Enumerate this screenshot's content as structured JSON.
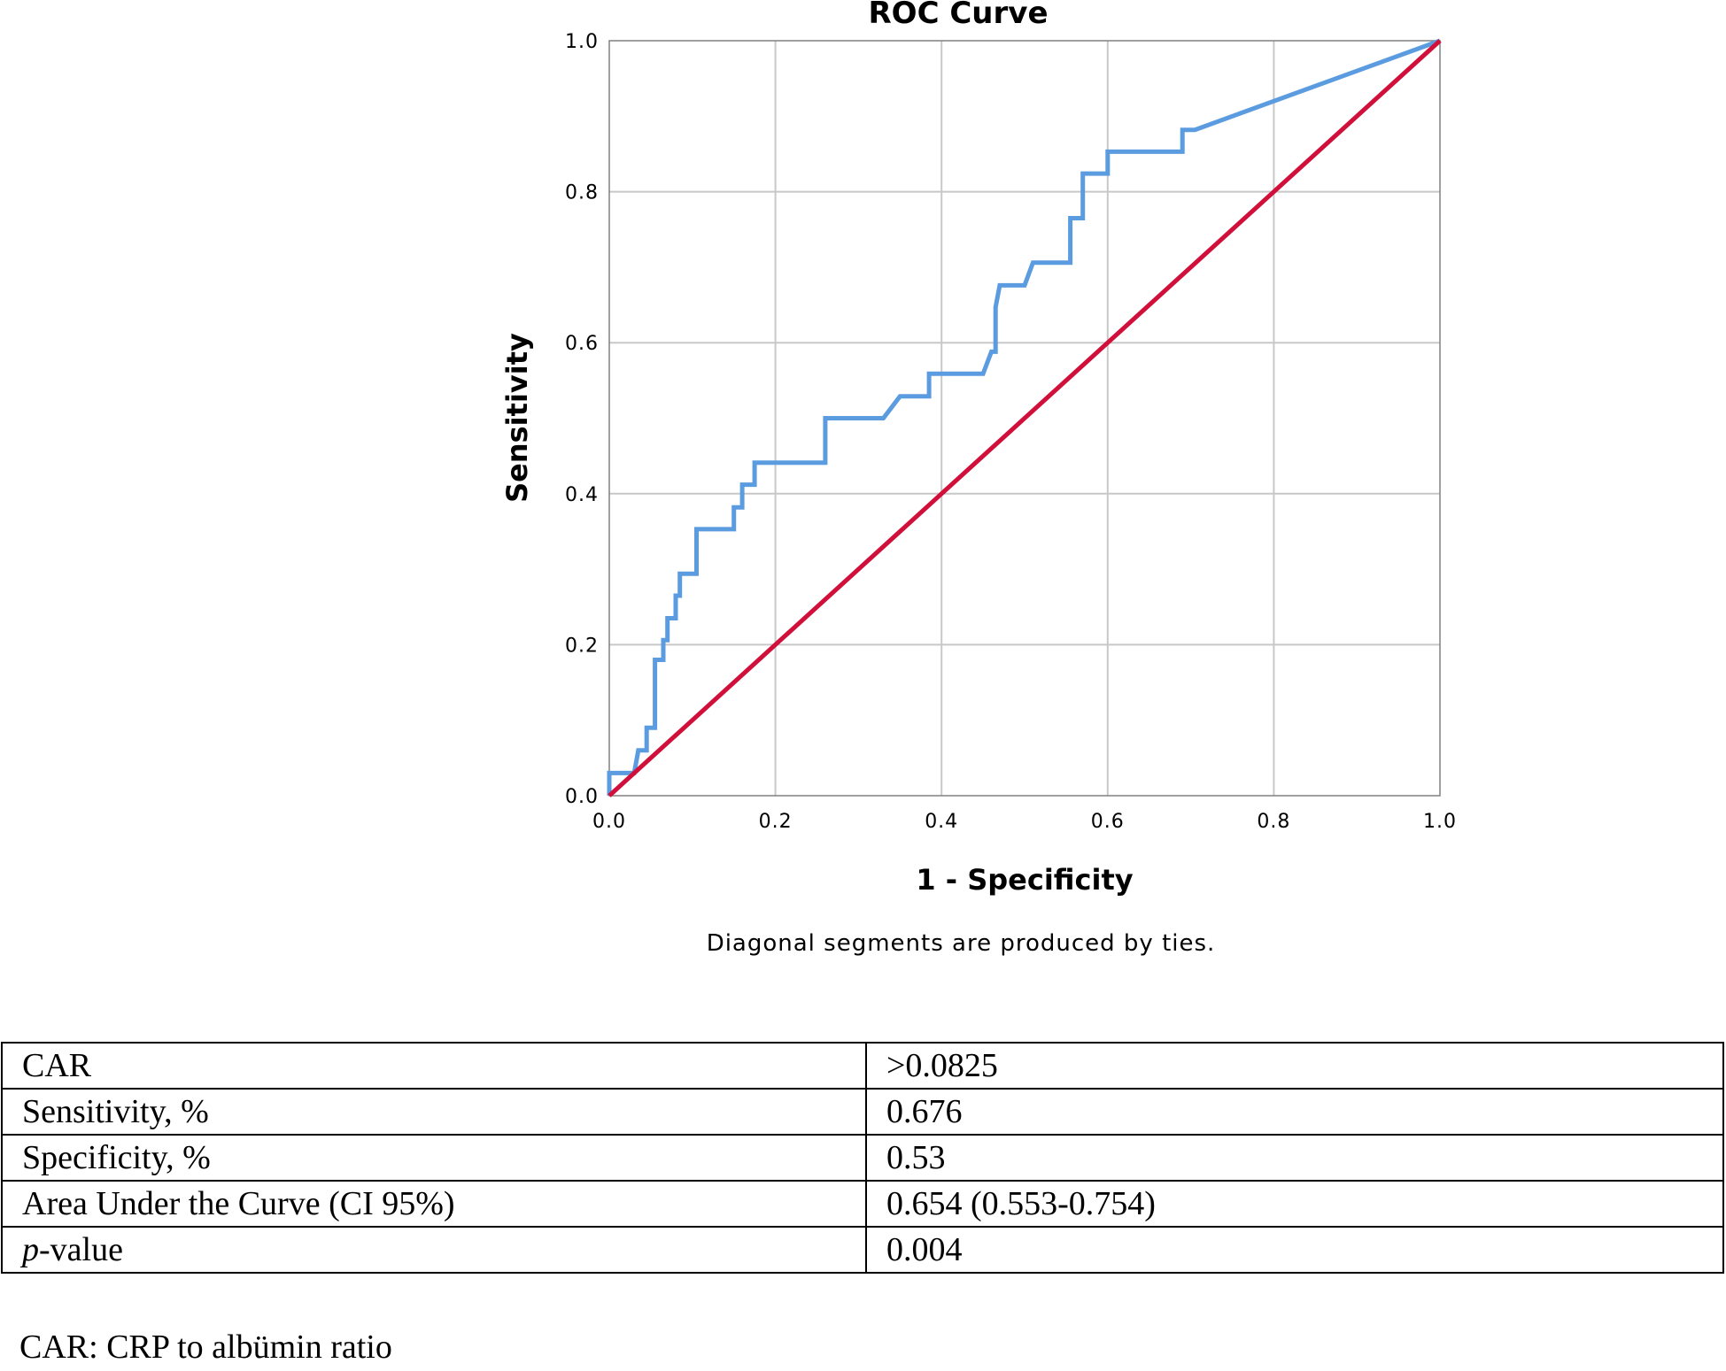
{
  "chart_data": {
    "type": "line",
    "title": "ROC Curve",
    "xlabel": "1 - Specificity",
    "ylabel": "Sensitivity",
    "xlim": [
      0,
      1
    ],
    "ylim": [
      0,
      1
    ],
    "x_ticks": [
      "0.0",
      "0.2",
      "0.4",
      "0.6",
      "0.8",
      "1.0"
    ],
    "y_ticks": [
      "0.0",
      "0.2",
      "0.4",
      "0.6",
      "0.8",
      "1.0"
    ],
    "grid": true,
    "footnote": "Diagonal segments are produced by ties.",
    "colors": {
      "roc": "#5b9be0",
      "reference": "#d0103a",
      "grid": "#c8c8c8"
    },
    "series": [
      {
        "values": [
          [
            0.0,
            0.0
          ],
          [
            0.0,
            0.03
          ],
          [
            0.03,
            0.03
          ],
          [
            0.035,
            0.06
          ],
          [
            0.045,
            0.06
          ],
          [
            0.045,
            0.09
          ],
          [
            0.055,
            0.09
          ],
          [
            0.055,
            0.18
          ],
          [
            0.065,
            0.18
          ],
          [
            0.065,
            0.206
          ],
          [
            0.07,
            0.206
          ],
          [
            0.07,
            0.235
          ],
          [
            0.08,
            0.235
          ],
          [
            0.08,
            0.265
          ],
          [
            0.085,
            0.265
          ],
          [
            0.085,
            0.294
          ],
          [
            0.105,
            0.294
          ],
          [
            0.105,
            0.353
          ],
          [
            0.15,
            0.353
          ],
          [
            0.15,
            0.382
          ],
          [
            0.16,
            0.382
          ],
          [
            0.16,
            0.412
          ],
          [
            0.175,
            0.412
          ],
          [
            0.175,
            0.441
          ],
          [
            0.26,
            0.441
          ],
          [
            0.26,
            0.5
          ],
          [
            0.33,
            0.5
          ],
          [
            0.35,
            0.529
          ],
          [
            0.385,
            0.529
          ],
          [
            0.385,
            0.559
          ],
          [
            0.45,
            0.559
          ],
          [
            0.46,
            0.588
          ],
          [
            0.465,
            0.588
          ],
          [
            0.465,
            0.647
          ],
          [
            0.47,
            0.676
          ],
          [
            0.5,
            0.676
          ],
          [
            0.51,
            0.706
          ],
          [
            0.555,
            0.706
          ],
          [
            0.555,
            0.765
          ],
          [
            0.57,
            0.765
          ],
          [
            0.57,
            0.824
          ],
          [
            0.6,
            0.824
          ],
          [
            0.6,
            0.853
          ],
          [
            0.69,
            0.853
          ],
          [
            0.69,
            0.882
          ],
          [
            0.705,
            0.882
          ],
          [
            1.0,
            1.0
          ]
        ]
      },
      {
        "values": [
          [
            0.0,
            0.0
          ],
          [
            1.0,
            1.0
          ]
        ]
      }
    ]
  },
  "table": {
    "rows": [
      {
        "label": "CAR",
        "value": ">0.0825"
      },
      {
        "label": "Sensitivity, %",
        "value": "0.676"
      },
      {
        "label": "Specificity, %",
        "value": "0.53"
      },
      {
        "label": "Area Under the Curve (CI 95%)",
        "value": "0.654 (0.553-0.754)"
      },
      {
        "label_italic": "p",
        "label": "-value",
        "value": "0.004"
      }
    ]
  },
  "caption": "CAR: CRP to albümin ratio"
}
